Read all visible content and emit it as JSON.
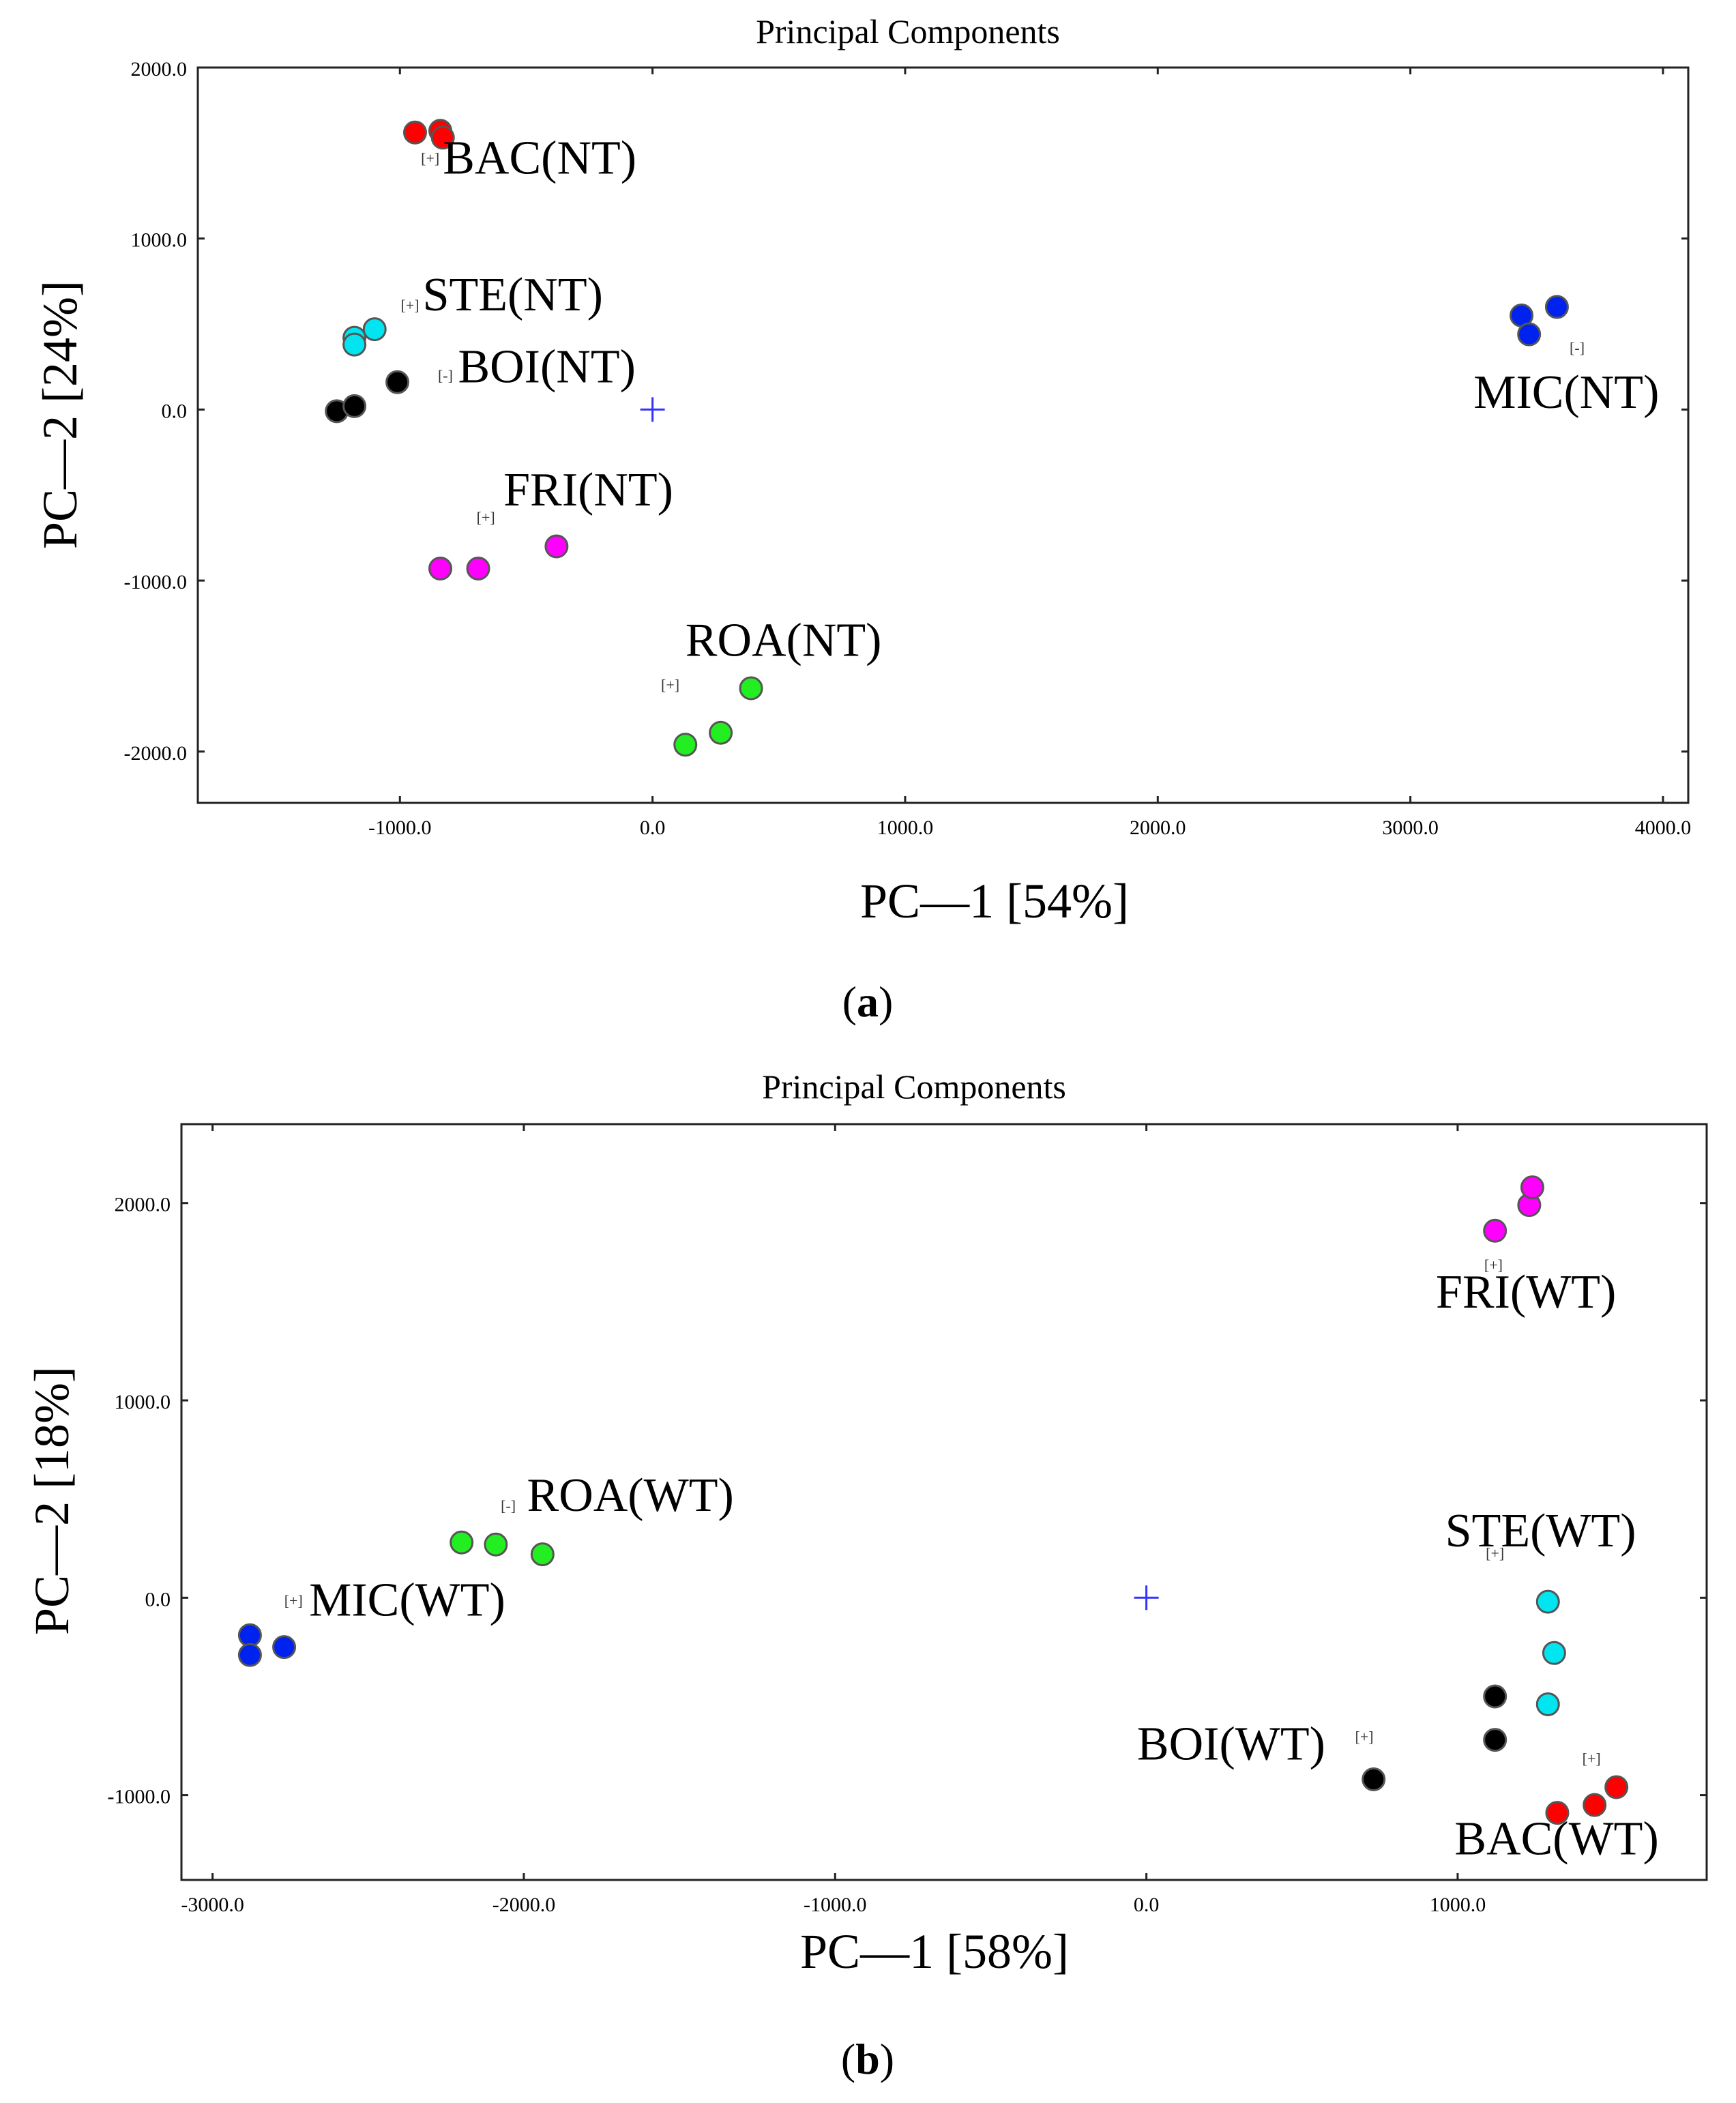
{
  "colors": {
    "bac": "#ff0000",
    "ste": "#00e5f0",
    "boi": "#000000",
    "fri": "#ff00ff",
    "roa": "#22ee22",
    "mic": "#0022ee",
    "origin": "#3333ff"
  },
  "chart_data": [
    {
      "type": "scatter",
      "title": "Principal Components",
      "xlabel": "PC—1 [54%]",
      "ylabel": "PC—2 [24%]",
      "caption_open": "(",
      "caption_letter": "a",
      "caption_close": ")",
      "xlim": [
        -1800,
        4100
      ],
      "ylim": [
        -2300,
        2000
      ],
      "xticks": [
        -1000,
        0,
        1000,
        2000,
        3000,
        4000
      ],
      "yticks": [
        -2000,
        -1000,
        0,
        1000,
        2000
      ],
      "xtick_labels": [
        "-1000.0",
        "0.0",
        "1000.0",
        "2000.0",
        "3000.0",
        "4000.0"
      ],
      "ytick_labels": [
        "-2000.0",
        "-1000.0",
        "0.0",
        "1000.0",
        "2000.0"
      ],
      "origin_marker": [
        0,
        0
      ],
      "series": [
        {
          "name": "BAC(NT)",
          "color_key": "bac",
          "points": [
            [
              -940,
              1620
            ],
            [
              -840,
              1630
            ],
            [
              -830,
              1590
            ]
          ],
          "label": {
            "x": -830,
            "y": 1380,
            "small": "[+]",
            "sx": -880,
            "sy": 1440
          }
        },
        {
          "name": "STE(NT)",
          "color_key": "ste",
          "points": [
            [
              -1180,
              420
            ],
            [
              -1100,
              470
            ],
            [
              -1180,
              380
            ]
          ],
          "label": {
            "x": -910,
            "y": 580,
            "small": "[+]",
            "sx": -960,
            "sy": 580
          }
        },
        {
          "name": "BOI(NT)",
          "color_key": "boi",
          "points": [
            [
              -1250,
              -10
            ],
            [
              -1180,
              20
            ],
            [
              -1010,
              160
            ]
          ],
          "label": {
            "x": -770,
            "y": 160,
            "small": "[-]",
            "sx": -820,
            "sy": 170
          }
        },
        {
          "name": "FRI(NT)",
          "color_key": "fri",
          "points": [
            [
              -840,
              -930
            ],
            [
              -690,
              -930
            ],
            [
              -380,
              -800
            ]
          ],
          "label": {
            "x": -590,
            "y": -560,
            "small": "[+]",
            "sx": -660,
            "sy": -660
          }
        },
        {
          "name": "ROA(NT)",
          "color_key": "roa",
          "points": [
            [
              130,
              -1960
            ],
            [
              270,
              -1890
            ],
            [
              390,
              -1630
            ]
          ],
          "label": {
            "x": 130,
            "y": -1440,
            "small": "[+]",
            "sx": 70,
            "sy": -1640
          }
        },
        {
          "name": "MIC(NT)",
          "color_key": "mic",
          "points": [
            [
              3440,
              550
            ],
            [
              3470,
              440
            ],
            [
              3580,
              600
            ]
          ],
          "label": {
            "x": 3250,
            "y": 10,
            "small": "[-]",
            "sx": 3660,
            "sy": 330
          }
        }
      ]
    },
    {
      "type": "scatter",
      "title": "Principal Components",
      "xlabel": "PC—1 [58%]",
      "ylabel": "PC—2 [18%]",
      "caption_open": "(",
      "caption_letter": "b",
      "caption_close": ")",
      "xlim": [
        -3100,
        1800
      ],
      "ylim": [
        -1430,
        2400
      ],
      "xticks": [
        -3000,
        -2000,
        -1000,
        0,
        1000
      ],
      "yticks": [
        -1000,
        0,
        1000,
        2000
      ],
      "xtick_labels": [
        "-3000.0",
        "-2000.0",
        "-1000.0",
        "0.0",
        "1000.0"
      ],
      "ytick_labels": [
        "-1000.0",
        "0.0",
        "1000.0",
        "2000.0"
      ],
      "origin_marker": [
        0,
        0
      ],
      "series": [
        {
          "name": "FRI(WT)",
          "color_key": "fri",
          "points": [
            [
              1120,
              1860
            ],
            [
              1230,
              1990
            ],
            [
              1240,
              2080
            ]
          ],
          "label": {
            "x": 930,
            "y": 1470,
            "small": "[+]",
            "sx": 1115,
            "sy": 1660
          }
        },
        {
          "name": "ROA(WT)",
          "color_key": "roa",
          "points": [
            [
              -2200,
              280
            ],
            [
              -2090,
              270
            ],
            [
              -1940,
              220
            ]
          ],
          "label": {
            "x": -1990,
            "y": 440,
            "small": "[-]",
            "sx": -2050,
            "sy": 440
          }
        },
        {
          "name": "MIC(WT)",
          "color_key": "mic",
          "points": [
            [
              -2880,
              -190
            ],
            [
              -2880,
              -290
            ],
            [
              -2770,
              -250
            ]
          ],
          "label": {
            "x": -2690,
            "y": -90,
            "small": "[+]",
            "sx": -2740,
            "sy": -40
          }
        },
        {
          "name": "STE(WT)",
          "color_key": "ste",
          "points": [
            [
              1290,
              -20
            ],
            [
              1310,
              -280
            ],
            [
              1290,
              -540
            ]
          ],
          "label": {
            "x": 960,
            "y": 260,
            "small": "[+]",
            "sx": 1120,
            "sy": 200
          }
        },
        {
          "name": "BOI(WT)",
          "color_key": "boi",
          "points": [
            [
              1120,
              -500
            ],
            [
              1120,
              -720
            ],
            [
              730,
              -920
            ]
          ],
          "label": {
            "x": -30,
            "y": -820,
            "small": "[+]",
            "sx": 700,
            "sy": -730
          }
        },
        {
          "name": "BAC(WT)",
          "color_key": "bac",
          "points": [
            [
              1320,
              -1090
            ],
            [
              1440,
              -1050
            ],
            [
              1510,
              -960
            ]
          ],
          "label": {
            "x": 990,
            "y": -1300,
            "small": "[+]",
            "sx": 1430,
            "sy": -840
          }
        }
      ]
    }
  ]
}
